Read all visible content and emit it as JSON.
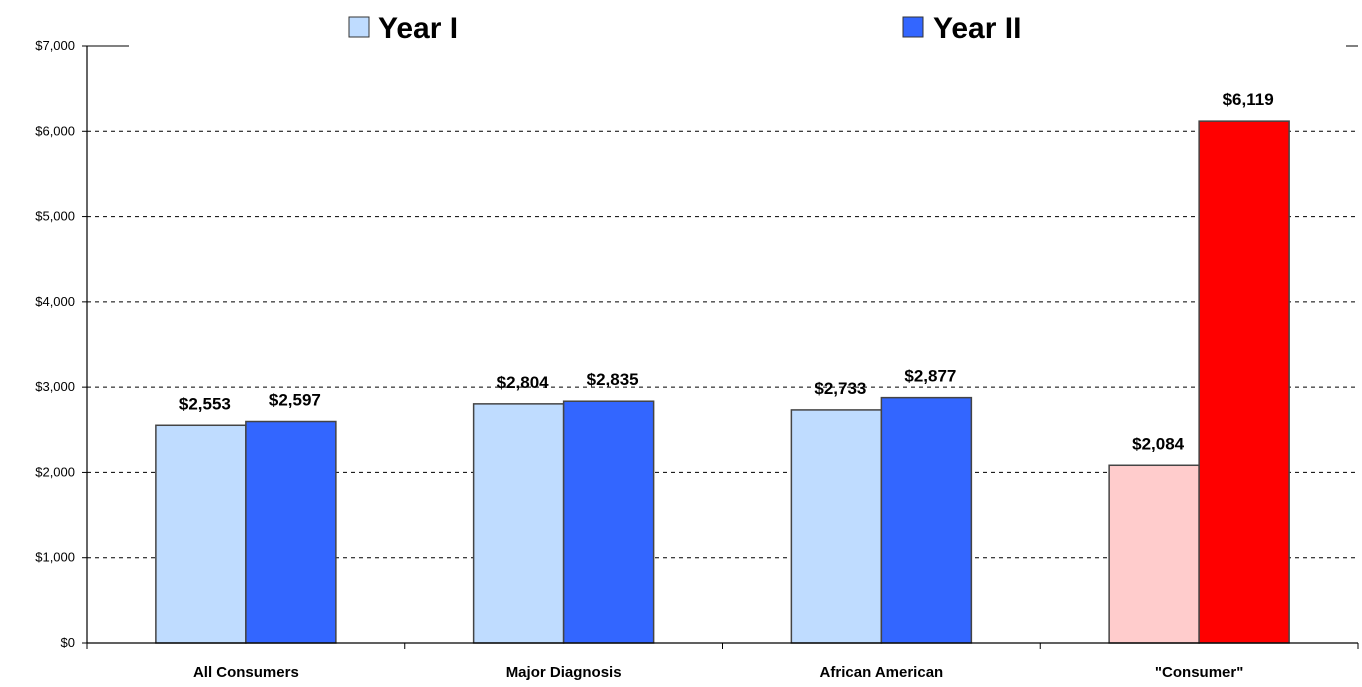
{
  "chart_data": {
    "type": "bar",
    "categories": [
      "All Consumers",
      "Major Diagnosis",
      "African American",
      "\"Consumer\""
    ],
    "series": [
      {
        "name": "Year I",
        "values": [
          2553,
          2804,
          2733,
          2084
        ],
        "labels": [
          "$2,553",
          "$2,804",
          "$2,733",
          "$2,084"
        ],
        "color": "#bfdcff",
        "highlight_color": "#ffcccc"
      },
      {
        "name": "Year II",
        "values": [
          2597,
          2835,
          2877,
          6119
        ],
        "labels": [
          "$2,597",
          "$2,835",
          "$2,877",
          "$6,119"
        ],
        "color": "#3366ff",
        "highlight_color": "#ff0000"
      }
    ],
    "highlight_category_index": 3,
    "yticks": [
      "$0",
      "$1,000",
      "$2,000",
      "$3,000",
      "$4,000",
      "$5,000",
      "$6,000",
      "$7,000"
    ],
    "ylim": [
      0,
      7000
    ],
    "grid": true,
    "legend": "top"
  }
}
